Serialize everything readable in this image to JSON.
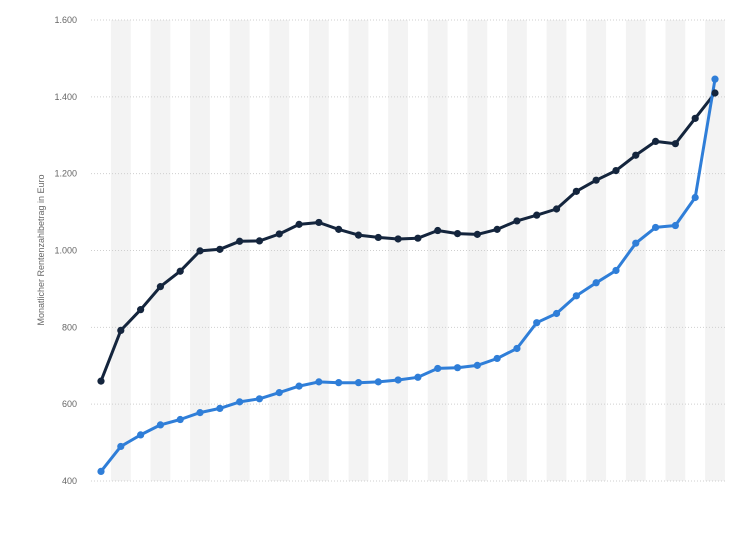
{
  "chart_data": {
    "type": "line",
    "title": "",
    "xlabel": "",
    "ylabel": "Monatlicher Rentenzahlbetrag in Euro",
    "ylim": [
      400,
      1600
    ],
    "yticks": [
      {
        "value": 400,
        "label": "400"
      },
      {
        "value": 600,
        "label": "600"
      },
      {
        "value": 800,
        "label": "800"
      },
      {
        "value": 1000,
        "label": "1.000"
      },
      {
        "value": 1200,
        "label": "1.200"
      },
      {
        "value": 1400,
        "label": "1.400"
      },
      {
        "value": 1600,
        "label": "1.600"
      }
    ],
    "grid": true,
    "legend": "none",
    "series": [
      {
        "color": "#14253d",
        "values": [
          660,
          792,
          846,
          906,
          946,
          999,
          1003,
          1024,
          1025,
          1043,
          1068,
          1073,
          1055,
          1040,
          1034,
          1030,
          1032,
          1052,
          1044,
          1042,
          1055,
          1077,
          1092,
          1108,
          1154,
          1183,
          1208,
          1248,
          1284,
          1278,
          1344,
          1410
        ]
      },
      {
        "color": "#2f7ed8",
        "values": [
          425,
          490,
          520,
          546,
          560,
          578,
          589,
          606,
          614,
          630,
          647,
          658,
          656,
          656,
          658,
          663,
          670,
          693,
          695,
          701,
          719,
          745,
          812,
          836,
          882,
          916,
          948,
          1019,
          1060,
          1065,
          1138,
          1446
        ]
      }
    ]
  }
}
